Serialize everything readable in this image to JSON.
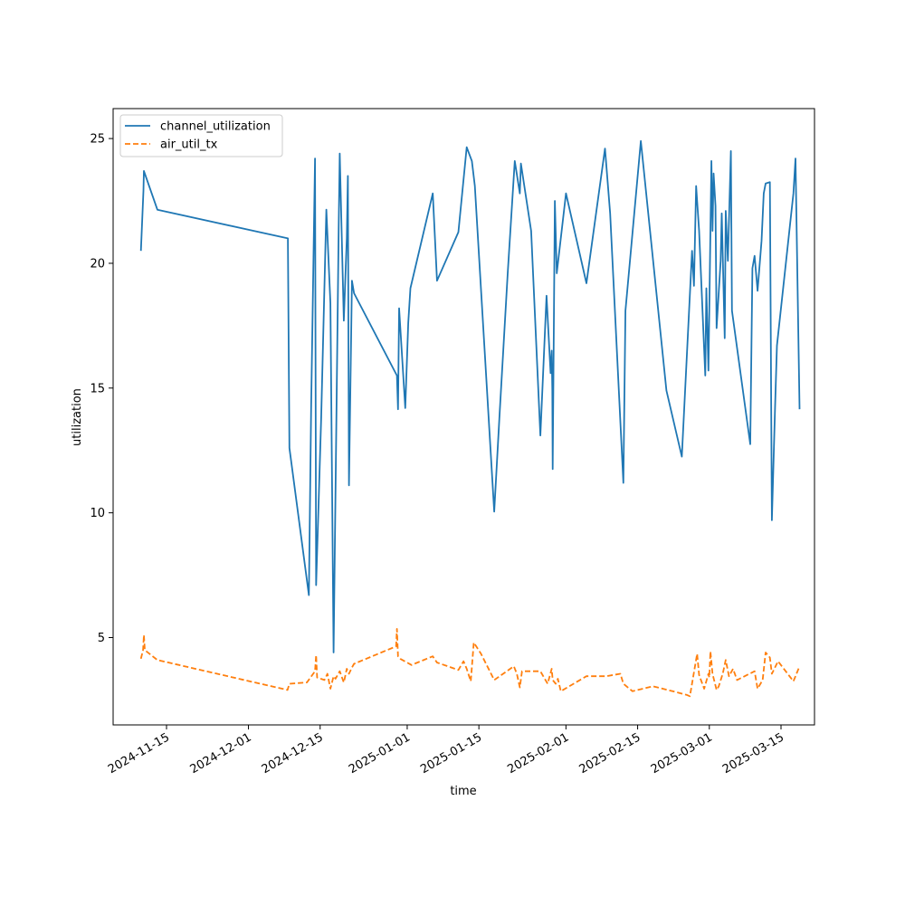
{
  "chart_data": {
    "type": "line",
    "xlabel": "time",
    "ylabel": "utilization",
    "x_scale": "date",
    "xlim": [
      "2024-11-08",
      "2025-03-18"
    ],
    "ylim": [
      1.5,
      26.2
    ],
    "grid": false,
    "legend_position": "top-left",
    "x_ticks": [
      "2024-11-15",
      "2024-12-01",
      "2024-12-15",
      "2025-01-01",
      "2025-01-15",
      "2025-02-01",
      "2025-02-15",
      "2025-03-01",
      "2025-03-15"
    ],
    "y_ticks": [
      5,
      10,
      15,
      20,
      25
    ],
    "series": [
      {
        "name": "channel_utilization",
        "color": "#1f77b4",
        "dash": "solid",
        "points": [
          [
            "2024-11-10 00:00",
            20.5
          ],
          [
            "2024-11-10 12:00",
            22.9
          ],
          [
            "2024-11-10 14:00",
            23.7
          ],
          [
            "2024-11-13 05:00",
            22.15
          ],
          [
            "2024-12-08 17:00",
            21.0
          ],
          [
            "2024-12-09 00:00",
            12.6
          ],
          [
            "2024-12-12 19:00",
            6.7
          ],
          [
            "2024-12-13 06:00",
            14.2
          ],
          [
            "2024-12-14 00:00",
            24.2
          ],
          [
            "2024-12-14 05:00",
            7.1
          ],
          [
            "2024-12-15 05:00",
            13.8
          ],
          [
            "2024-12-16 05:00",
            22.15
          ],
          [
            "2024-12-17 00:00",
            18.4
          ],
          [
            "2024-12-17 15:00",
            4.4
          ],
          [
            "2024-12-18 15:00",
            21.6
          ],
          [
            "2024-12-18 20:00",
            24.4
          ],
          [
            "2024-12-19 15:00",
            17.7
          ],
          [
            "2024-12-20 05:00",
            21.0
          ],
          [
            "2024-12-20 10:00",
            23.5
          ],
          [
            "2024-12-20 15:00",
            11.1
          ],
          [
            "2024-12-21 05:00",
            19.3
          ],
          [
            "2024-12-21 15:00",
            18.8
          ],
          [
            "2024-12-30 00:00",
            15.5
          ],
          [
            "2024-12-30 05:00",
            14.15
          ],
          [
            "2024-12-30 10:00",
            18.2
          ],
          [
            "2024-12-31 15:00",
            14.2
          ],
          [
            "2025-01-01 05:00",
            17.6
          ],
          [
            "2025-01-01 15:00",
            19.0
          ],
          [
            "2025-01-06 00:00",
            22.8
          ],
          [
            "2025-01-06 20:00",
            19.3
          ],
          [
            "2025-01-11 00:00",
            21.25
          ],
          [
            "2025-01-12 15:00",
            24.65
          ],
          [
            "2025-01-13 15:00",
            24.1
          ],
          [
            "2025-01-14 05:00",
            23.1
          ],
          [
            "2025-01-18 00:00",
            10.05
          ],
          [
            "2025-01-19 00:00",
            13.8
          ],
          [
            "2025-01-20 15:00",
            19.6
          ],
          [
            "2025-01-22 00:00",
            24.1
          ],
          [
            "2025-01-23 00:00",
            22.8
          ],
          [
            "2025-01-23 05:00",
            24.0
          ],
          [
            "2025-01-25 05:00",
            21.3
          ],
          [
            "2025-01-27 00:00",
            13.1
          ],
          [
            "2025-01-28 05:00",
            18.7
          ],
          [
            "2025-01-29 00:00",
            15.6
          ],
          [
            "2025-01-29 05:00",
            16.5
          ],
          [
            "2025-01-29 08:00",
            14.9
          ],
          [
            "2025-01-29 10:00",
            11.75
          ],
          [
            "2025-01-29 20:00",
            22.5
          ],
          [
            "2025-01-30 05:00",
            19.6
          ],
          [
            "2025-02-01 00:00",
            22.8
          ],
          [
            "2025-02-05 00:00",
            19.2
          ],
          [
            "2025-02-08 15:00",
            24.6
          ],
          [
            "2025-02-09 15:00",
            22.0
          ],
          [
            "2025-02-12 05:00",
            11.2
          ],
          [
            "2025-02-12 15:00",
            18.1
          ],
          [
            "2025-02-15 15:00",
            24.9
          ],
          [
            "2025-02-20 15:00",
            14.9
          ],
          [
            "2025-02-23 15:00",
            12.25
          ],
          [
            "2025-02-25 15:00",
            20.5
          ],
          [
            "2025-02-26 00:00",
            19.1
          ],
          [
            "2025-02-26 10:00",
            23.1
          ],
          [
            "2025-02-27 00:00",
            21.3
          ],
          [
            "2025-02-28 05:00",
            15.5
          ],
          [
            "2025-02-28 10:00",
            19.0
          ],
          [
            "2025-02-28 20:00",
            15.7
          ],
          [
            "2025-03-01 10:00",
            24.1
          ],
          [
            "2025-03-01 15:00",
            21.3
          ],
          [
            "2025-03-01 20:00",
            23.6
          ],
          [
            "2025-03-02 05:00",
            22.3
          ],
          [
            "2025-03-02 10:00",
            17.4
          ],
          [
            "2025-03-03 05:00",
            20.1
          ],
          [
            "2025-03-03 10:00",
            22.0
          ],
          [
            "2025-03-04 00:00",
            17.0
          ],
          [
            "2025-03-04 05:00",
            22.1
          ],
          [
            "2025-03-04 15:00",
            20.1
          ],
          [
            "2025-03-05 05:00",
            24.5
          ],
          [
            "2025-03-05 10:00",
            18.1
          ],
          [
            "2025-03-09 00:00",
            12.75
          ],
          [
            "2025-03-09 10:00",
            19.8
          ],
          [
            "2025-03-09 20:00",
            20.3
          ],
          [
            "2025-03-10 10:00",
            18.9
          ],
          [
            "2025-03-11 05:00",
            20.9
          ],
          [
            "2025-03-11 15:00",
            22.8
          ],
          [
            "2025-03-12 00:00",
            23.2
          ],
          [
            "2025-03-12 20:00",
            23.25
          ],
          [
            "2025-03-13 05:00",
            9.7
          ],
          [
            "2025-03-13 20:00",
            14.2
          ],
          [
            "2025-03-14 05:00",
            16.7
          ],
          [
            "2025-03-17 10:00",
            22.8
          ],
          [
            "2025-03-17 20:00",
            24.2
          ],
          [
            "2025-03-18 15:00",
            14.15
          ]
        ]
      },
      {
        "name": "air_util_tx",
        "color": "#ff7f0e",
        "dash": "dashed",
        "points": [
          [
            "2024-11-10 00:00",
            4.15
          ],
          [
            "2024-11-10 10:00",
            4.5
          ],
          [
            "2024-11-10 14:00",
            5.1
          ],
          [
            "2024-11-10 18:00",
            4.5
          ],
          [
            "2024-11-13 05:00",
            4.1
          ],
          [
            "2024-12-08 15:00",
            2.9
          ],
          [
            "2024-12-09 00:00",
            3.15
          ],
          [
            "2024-12-12 10:00",
            3.2
          ],
          [
            "2024-12-14 00:00",
            3.65
          ],
          [
            "2024-12-14 05:00",
            4.3
          ],
          [
            "2024-12-14 10:00",
            3.4
          ],
          [
            "2024-12-15 20:00",
            3.3
          ],
          [
            "2024-12-16 10:00",
            3.55
          ],
          [
            "2024-12-17 00:00",
            2.95
          ],
          [
            "2024-12-17 15:00",
            3.45
          ],
          [
            "2024-12-18 00:00",
            3.35
          ],
          [
            "2024-12-18 20:00",
            3.65
          ],
          [
            "2024-12-19 15:00",
            3.2
          ],
          [
            "2024-12-20 05:00",
            3.75
          ],
          [
            "2024-12-20 15:00",
            3.55
          ],
          [
            "2024-12-21 05:00",
            3.8
          ],
          [
            "2024-12-21 15:00",
            3.95
          ],
          [
            "2024-12-29 20:00",
            4.65
          ],
          [
            "2024-12-30 00:00",
            5.35
          ],
          [
            "2024-12-30 05:00",
            4.25
          ],
          [
            "2024-12-30 15:00",
            4.15
          ],
          [
            "2025-01-01 20:00",
            3.9
          ],
          [
            "2025-01-06 00:00",
            4.25
          ],
          [
            "2025-01-06 20:00",
            4.0
          ],
          [
            "2025-01-11 00:00",
            3.7
          ],
          [
            "2025-01-12 00:00",
            4.05
          ],
          [
            "2025-01-12 15:00",
            3.75
          ],
          [
            "2025-01-13 10:00",
            3.25
          ],
          [
            "2025-01-14 00:00",
            4.8
          ],
          [
            "2025-01-15 10:00",
            4.35
          ],
          [
            "2025-01-18 00:00",
            3.3
          ],
          [
            "2025-01-21 20:00",
            3.85
          ],
          [
            "2025-01-22 10:00",
            3.55
          ],
          [
            "2025-01-23 00:00",
            3.0
          ],
          [
            "2025-01-23 10:00",
            3.65
          ],
          [
            "2025-01-27 00:00",
            3.65
          ],
          [
            "2025-01-28 10:00",
            3.15
          ],
          [
            "2025-01-28 20:00",
            3.45
          ],
          [
            "2025-01-29 05:00",
            3.75
          ],
          [
            "2025-01-29 10:00",
            3.3
          ],
          [
            "2025-01-30 00:00",
            3.15
          ],
          [
            "2025-01-30 10:00",
            3.35
          ],
          [
            "2025-01-31 00:00",
            2.85
          ],
          [
            "2025-02-05 00:00",
            3.45
          ],
          [
            "2025-02-08 20:00",
            3.45
          ],
          [
            "2025-02-11 15:00",
            3.55
          ],
          [
            "2025-02-12 05:00",
            3.15
          ],
          [
            "2025-02-14 00:00",
            2.85
          ],
          [
            "2025-02-18 00:00",
            3.05
          ],
          [
            "2025-02-22 20:00",
            2.8
          ],
          [
            "2025-02-24 15:00",
            2.7
          ],
          [
            "2025-02-25 05:00",
            2.65
          ],
          [
            "2025-02-26 15:00",
            4.35
          ],
          [
            "2025-02-27 00:00",
            3.5
          ],
          [
            "2025-02-28 00:00",
            2.95
          ],
          [
            "2025-02-28 20:00",
            3.55
          ],
          [
            "2025-03-01 00:00",
            3.4
          ],
          [
            "2025-03-01 05:00",
            4.45
          ],
          [
            "2025-03-01 15:00",
            3.55
          ],
          [
            "2025-03-02 10:00",
            2.9
          ],
          [
            "2025-03-02 20:00",
            3.05
          ],
          [
            "2025-03-03 15:00",
            3.55
          ],
          [
            "2025-03-04 05:00",
            4.1
          ],
          [
            "2025-03-04 20:00",
            3.45
          ],
          [
            "2025-03-05 15:00",
            3.75
          ],
          [
            "2025-03-06 10:00",
            3.3
          ],
          [
            "2025-03-09 20:00",
            3.65
          ],
          [
            "2025-03-10 10:00",
            2.95
          ],
          [
            "2025-03-11 10:00",
            3.3
          ],
          [
            "2025-03-12 00:00",
            4.4
          ],
          [
            "2025-03-12 20:00",
            4.2
          ],
          [
            "2025-03-13 05:00",
            3.55
          ],
          [
            "2025-03-14 10:00",
            4.05
          ],
          [
            "2025-03-17 10:00",
            3.25
          ],
          [
            "2025-03-18 15:00",
            3.85
          ]
        ]
      }
    ]
  }
}
